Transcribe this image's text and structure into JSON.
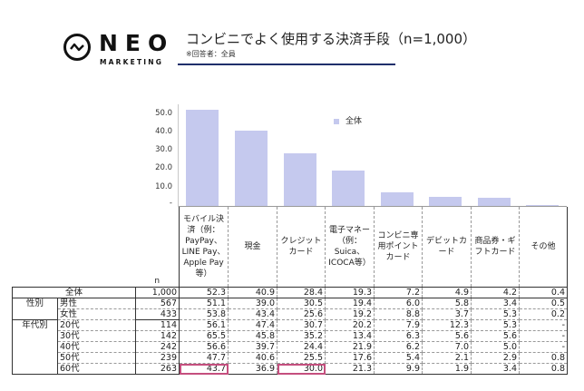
{
  "header": {
    "logo_text": "NEO",
    "logo_subtext": "MARKETING",
    "title": "コンビニでよく使用する決済手段（n=1,000）",
    "subtitle": "※回答者：全員"
  },
  "chart_data": {
    "type": "bar",
    "title": "コンビニでよく使用する決済手段（n=1,000）",
    "xlabel": "",
    "ylabel": "",
    "ylim": [
      0,
      50
    ],
    "yticks": [
      "50.0",
      "40.0",
      "30.0",
      "20.0",
      "10.0",
      "-"
    ],
    "legend": [
      "全体"
    ],
    "legend_position": "top-right",
    "grid": false,
    "categories": [
      "モバイル決済（例：PayPay、LINE Pay、Apple Pay等）",
      "現金",
      "クレジットカード",
      "電子マネー（例：Suica、ICOCA等）",
      "コンビニ専用ポイントカード",
      "デビットカード",
      "商品券・ギフトカード",
      "その他"
    ],
    "series": [
      {
        "name": "全体",
        "values": [
          52.3,
          40.9,
          28.4,
          19.3,
          7.2,
          4.9,
          4.2,
          0.4
        ],
        "color": "#c5c9ee"
      }
    ]
  },
  "table": {
    "n_label": "n",
    "columns": [
      "モバイル決済（例：PayPay、LINE Pay、Apple Pay等）",
      "現金",
      "クレジットカード",
      "電子マネー（例：Suica、ICOCA等）",
      "コンビニ専用ポイントカード",
      "デビットカード",
      "商品券・ギフトカード",
      "その他"
    ],
    "rows": [
      {
        "group": "",
        "label": "全体",
        "n": "1,000",
        "values": [
          "52.3",
          "40.9",
          "28.4",
          "19.3",
          "7.2",
          "4.9",
          "4.2",
          "0.4"
        ]
      },
      {
        "group": "性別",
        "label": "男性",
        "n": "567",
        "values": [
          "51.1",
          "39.0",
          "30.5",
          "19.4",
          "6.0",
          "5.8",
          "3.4",
          "0.5"
        ]
      },
      {
        "group": "",
        "label": "女性",
        "n": "433",
        "values": [
          "53.8",
          "43.4",
          "25.6",
          "19.2",
          "8.8",
          "3.7",
          "5.3",
          "0.2"
        ]
      },
      {
        "group": "年代別",
        "label": "20代",
        "n": "114",
        "values": [
          "56.1",
          "47.4",
          "30.7",
          "20.2",
          "7.9",
          "12.3",
          "5.3",
          "-"
        ]
      },
      {
        "group": "",
        "label": "30代",
        "n": "142",
        "values": [
          "65.5",
          "45.8",
          "35.2",
          "13.4",
          "6.3",
          "5.6",
          "5.6",
          "-"
        ]
      },
      {
        "group": "",
        "label": "40代",
        "n": "242",
        "values": [
          "56.6",
          "39.7",
          "24.4",
          "21.9",
          "6.2",
          "7.0",
          "5.0",
          "-"
        ]
      },
      {
        "group": "",
        "label": "50代",
        "n": "239",
        "values": [
          "47.7",
          "40.6",
          "25.5",
          "17.6",
          "5.4",
          "2.1",
          "2.9",
          "0.8"
        ]
      },
      {
        "group": "",
        "label": "60代",
        "n": "263",
        "values": [
          "43.7",
          "36.9",
          "30.0",
          "21.3",
          "9.9",
          "1.9",
          "3.4",
          "0.8"
        ]
      }
    ],
    "highlight_color": "#c44f7e"
  }
}
